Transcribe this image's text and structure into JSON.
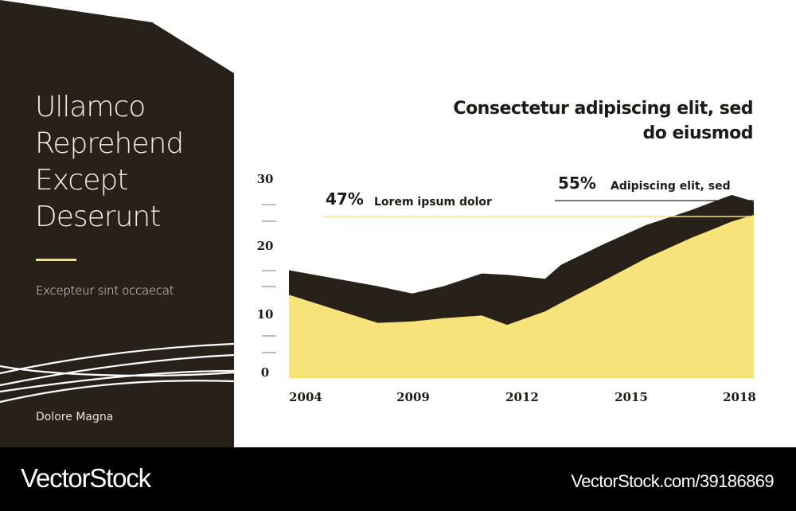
{
  "colors": {
    "panel": "#282119",
    "accent_yellow": "#f7e37a",
    "dark_area": "#282119",
    "text_dark": "#1e1a14",
    "footer_bg": "#000000"
  },
  "side": {
    "title_lines": [
      "Ullamco",
      "Reprehend",
      "Except",
      "Deserunt"
    ],
    "subtitle": "Excepteur sint occaecat",
    "footer": "Dolore Magna"
  },
  "footer": {
    "brand": "VectorStock",
    "credit": "VectorStock.com/39186869"
  },
  "chart_data": {
    "type": "area",
    "title": "Consectetur adipiscing elit, sed do eiusmod",
    "title_lines": [
      "Consectetur adipiscing elit, sed",
      "do eiusmod"
    ],
    "xlabel": "",
    "ylabel": "",
    "y_ticks": [
      "30",
      "20",
      "10",
      "0"
    ],
    "x_ticks": [
      "2004",
      "2009",
      "2012",
      "2015",
      "2018"
    ],
    "ylim": [
      0,
      30
    ],
    "xlim": [
      2003.7,
      2018.4
    ],
    "grid": false,
    "series": [
      {
        "color": "#282119",
        "x": [
          2003.7,
          2006.5,
          2007.6,
          2008.6,
          2009.8,
          2010.6,
          2011.8,
          2012.3,
          2013.6,
          2015.0,
          2016.4,
          2017.7,
          2018.4
        ],
        "values": [
          16.2,
          13.8,
          12.7,
          13.8,
          15.7,
          15.5,
          14.9,
          17.0,
          20.0,
          23.0,
          25.2,
          27.5,
          26.5
        ]
      },
      {
        "color": "#f7e37a",
        "x": [
          2003.7,
          2006.5,
          2007.6,
          2008.6,
          2009.8,
          2010.6,
          2011.8,
          2012.3,
          2013.6,
          2015.0,
          2016.4,
          2017.7,
          2018.4
        ],
        "values": [
          12.5,
          8.3,
          8.5,
          9.0,
          9.4,
          8.0,
          10.0,
          11.3,
          14.5,
          18.0,
          21.0,
          23.5,
          24.5
        ]
      }
    ],
    "annotations": [
      {
        "value": "47%",
        "label": "Lorem ipsum dolor"
      },
      {
        "value": "55%",
        "label": "Adipiscing elit, sed"
      }
    ]
  }
}
